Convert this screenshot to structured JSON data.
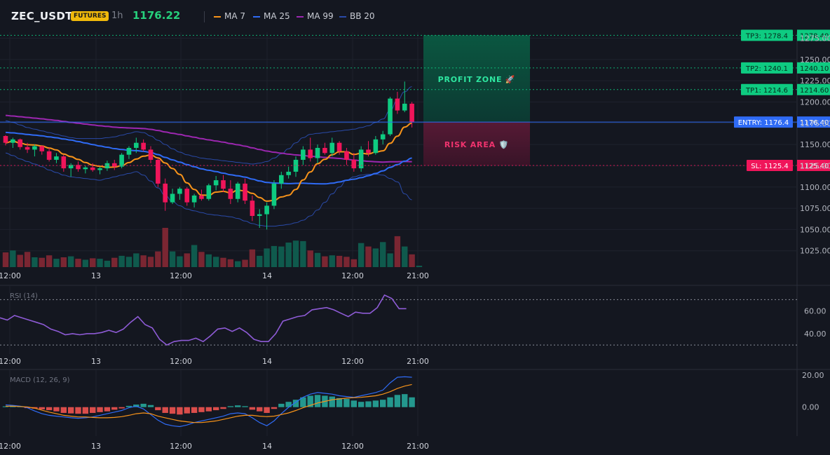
{
  "header": {
    "symbol": "ZEC_USDT",
    "badge": "FUTURES",
    "timeframe": "1h",
    "price": "1176.22",
    "legend": [
      {
        "label": "MA 7",
        "color": "#f7931a"
      },
      {
        "label": "MA 25",
        "color": "#2f6bf5"
      },
      {
        "label": "MA 99",
        "color": "#9c27b0"
      },
      {
        "label": "BB 20",
        "color": "#2a4aa8"
      }
    ]
  },
  "chart_data": [
    {
      "type": "candlestick",
      "title": "ZEC_USDT",
      "y_ticks": [
        1025,
        1050,
        1075,
        1100,
        1125,
        1150,
        1175,
        1200,
        1225,
        1250,
        1275
      ],
      "y_tick_labels": [
        "1025.00",
        "1050.00",
        "1075.00",
        "1100.00",
        "1125.00",
        "1150.00",
        "1175.00",
        "1200.00",
        "1225.00",
        "1250.00",
        "1275.00"
      ],
      "ylim": [
        1005,
        1282
      ],
      "x_labels": [
        "12:00",
        "13",
        "12:00",
        "14",
        "12:00",
        "21:00"
      ],
      "candles": [
        [
          1160,
          1161,
          1149,
          1152
        ],
        [
          1152,
          1158,
          1146,
          1156
        ],
        [
          1156,
          1157,
          1144,
          1147
        ],
        [
          1147,
          1152,
          1140,
          1144
        ],
        [
          1144,
          1150,
          1136,
          1148
        ],
        [
          1148,
          1149,
          1138,
          1142
        ],
        [
          1142,
          1146,
          1130,
          1132
        ],
        [
          1132,
          1140,
          1128,
          1136
        ],
        [
          1136,
          1138,
          1118,
          1122
        ],
        [
          1122,
          1128,
          1112,
          1126
        ],
        [
          1126,
          1130,
          1118,
          1121
        ],
        [
          1121,
          1125,
          1116,
          1123
        ],
        [
          1123,
          1128,
          1118,
          1120
        ],
        [
          1120,
          1124,
          1115,
          1122
        ],
        [
          1122,
          1131,
          1119,
          1128
        ],
        [
          1128,
          1132,
          1120,
          1124
        ],
        [
          1124,
          1140,
          1122,
          1138
        ],
        [
          1138,
          1148,
          1133,
          1146
        ],
        [
          1146,
          1158,
          1140,
          1152
        ],
        [
          1152,
          1156,
          1142,
          1144
        ],
        [
          1144,
          1148,
          1128,
          1132
        ],
        [
          1132,
          1134,
          1100,
          1104
        ],
        [
          1104,
          1110,
          1072,
          1082
        ],
        [
          1082,
          1098,
          1080,
          1092
        ],
        [
          1092,
          1100,
          1085,
          1098
        ],
        [
          1098,
          1100,
          1078,
          1082
        ],
        [
          1082,
          1092,
          1076,
          1090
        ],
        [
          1090,
          1097,
          1084,
          1086
        ],
        [
          1086,
          1104,
          1084,
          1102
        ],
        [
          1102,
          1113,
          1096,
          1108
        ],
        [
          1108,
          1114,
          1094,
          1098
        ],
        [
          1098,
          1108,
          1080,
          1086
        ],
        [
          1086,
          1106,
          1082,
          1104
        ],
        [
          1104,
          1110,
          1080,
          1084
        ],
        [
          1084,
          1090,
          1060,
          1066
        ],
        [
          1066,
          1074,
          1052,
          1068
        ],
        [
          1068,
          1082,
          1050,
          1078
        ],
        [
          1078,
          1108,
          1074,
          1104
        ],
        [
          1104,
          1118,
          1098,
          1114
        ],
        [
          1114,
          1124,
          1110,
          1118
        ],
        [
          1118,
          1136,
          1112,
          1132
        ],
        [
          1132,
          1148,
          1126,
          1144
        ],
        [
          1144,
          1158,
          1130,
          1134
        ],
        [
          1134,
          1150,
          1128,
          1146
        ],
        [
          1146,
          1152,
          1138,
          1140
        ],
        [
          1140,
          1158,
          1136,
          1152
        ],
        [
          1152,
          1154,
          1138,
          1142
        ],
        [
          1142,
          1146,
          1126,
          1132
        ],
        [
          1132,
          1140,
          1118,
          1122
        ],
        [
          1122,
          1148,
          1118,
          1144
        ],
        [
          1144,
          1154,
          1136,
          1140
        ],
        [
          1140,
          1160,
          1138,
          1156
        ],
        [
          1156,
          1166,
          1150,
          1162
        ],
        [
          1162,
          1206,
          1160,
          1204
        ],
        [
          1204,
          1212,
          1186,
          1190
        ],
        [
          1190,
          1224,
          1188,
          1198
        ],
        [
          1198,
          1200,
          1170,
          1176
        ]
      ],
      "volumes": [
        0.3,
        0.34,
        0.25,
        0.31,
        0.2,
        0.19,
        0.24,
        0.17,
        0.2,
        0.22,
        0.17,
        0.15,
        0.18,
        0.17,
        0.13,
        0.19,
        0.23,
        0.21,
        0.28,
        0.24,
        0.21,
        0.32,
        0.8,
        0.32,
        0.22,
        0.28,
        0.45,
        0.31,
        0.26,
        0.21,
        0.19,
        0.16,
        0.12,
        0.15,
        0.36,
        0.23,
        0.38,
        0.43,
        0.42,
        0.5,
        0.54,
        0.53,
        0.34,
        0.29,
        0.22,
        0.24,
        0.23,
        0.21,
        0.16,
        0.49,
        0.42,
        0.38,
        0.51,
        0.28,
        0.63,
        0.42,
        0.26
      ],
      "bb_upper": [
        1178,
        1176,
        1173,
        1170,
        1168,
        1166,
        1164,
        1162,
        1160,
        1158,
        1157,
        1157,
        1157,
        1157,
        1158,
        1159,
        1161,
        1163,
        1165,
        1164,
        1160,
        1155,
        1150,
        1145,
        1141,
        1138,
        1136,
        1134,
        1133,
        1132,
        1131,
        1130,
        1129,
        1128,
        1127,
        1128,
        1130,
        1134,
        1139,
        1145,
        1152,
        1158,
        1162,
        1163,
        1164,
        1165,
        1166,
        1167,
        1168,
        1170,
        1172,
        1176,
        1180,
        1190,
        1202,
        1212,
        1218
      ],
      "bb_lower": [
        1140,
        1137,
        1133,
        1130,
        1127,
        1124,
        1120,
        1117,
        1114,
        1112,
        1111,
        1110,
        1109,
        1108,
        1110,
        1112,
        1114,
        1116,
        1118,
        1114,
        1107,
        1099,
        1090,
        1083,
        1078,
        1074,
        1072,
        1070,
        1068,
        1067,
        1066,
        1065,
        1063,
        1060,
        1057,
        1055,
        1054,
        1054,
        1055,
        1056,
        1058,
        1061,
        1066,
        1073,
        1082,
        1092,
        1100,
        1108,
        1112,
        1114,
        1115,
        1115,
        1114,
        1110,
        1106,
        1092,
        1085
      ]
    },
    {
      "type": "line",
      "title": "RSI (14)",
      "y_ticks": [
        40,
        60
      ],
      "y_tick_labels": [
        "40.00",
        "60.00"
      ],
      "ylim": [
        22,
        82
      ],
      "x_labels": [
        "12:00",
        "13",
        "12:00",
        "14",
        "12:00",
        "21:00"
      ],
      "levels": [
        70,
        30
      ],
      "values": [
        54,
        52,
        56,
        54,
        52,
        50,
        48,
        44,
        42,
        39,
        40,
        39,
        40,
        40,
        41,
        43,
        41,
        44,
        50,
        55,
        48,
        45,
        35,
        30,
        33,
        34,
        34,
        36,
        33,
        38,
        44,
        45,
        42,
        45,
        41,
        35,
        33,
        33,
        40,
        51,
        53,
        55,
        56,
        61,
        62,
        63,
        61,
        58,
        55,
        59,
        58,
        58,
        63,
        74,
        71,
        62,
        62
      ]
    },
    {
      "type": "bar_line",
      "title": "MACD (12, 26, 9)",
      "y_ticks": [
        0,
        20
      ],
      "y_tick_labels": [
        "0.00",
        "20.00"
      ],
      "ylim": [
        -18,
        23
      ],
      "x_labels": [
        "12:00",
        "13",
        "12:00",
        "14",
        "12:00",
        "21:00"
      ],
      "histogram": [
        0.5,
        1.1,
        0.6,
        -0.6,
        -0.9,
        -1.4,
        -1.9,
        -2.6,
        -3.6,
        -3.9,
        -4.1,
        -4.1,
        -3.6,
        -3.1,
        -2.6,
        -1.6,
        -0.8,
        0.8,
        1.6,
        2.1,
        1.3,
        -1.9,
        -3.6,
        -4.1,
        -4.6,
        -3.9,
        -3.6,
        -3.1,
        -2.6,
        -1.9,
        -1.1,
        0.6,
        1.1,
        0.6,
        -1.6,
        -2.6,
        -3.6,
        -1.1,
        2.1,
        3.3,
        4.6,
        6.1,
        7.1,
        7.6,
        7.1,
        6.6,
        5.6,
        5.1,
        4.1,
        3.3,
        3.6,
        4.1,
        4.6,
        6.1,
        7.6,
        8.1,
        6.1
      ],
      "macd": [
        1.4,
        1.1,
        0.6,
        -0.4,
        -2.4,
        -4.1,
        -5.1,
        -5.6,
        -6.1,
        -6.6,
        -6.9,
        -6.6,
        -6.1,
        -5.1,
        -4.1,
        -3.1,
        -2.1,
        -0.4,
        0.6,
        -1.1,
        -4.6,
        -8.1,
        -10.6,
        -11.6,
        -12.1,
        -11.1,
        -9.6,
        -8.6,
        -7.6,
        -6.6,
        -5.6,
        -4.1,
        -3.6,
        -4.1,
        -6.6,
        -9.6,
        -11.6,
        -8.6,
        -4.1,
        -0.1,
        3.1,
        6.1,
        8.1,
        9.1,
        8.6,
        8.1,
        7.1,
        6.6,
        6.1,
        7.1,
        8.1,
        9.1,
        10.6,
        15.1,
        18.6,
        18.9,
        18.6
      ],
      "signal": [
        0.6,
        0.6,
        0.4,
        0.1,
        -0.6,
        -1.9,
        -3.1,
        -4.1,
        -5.1,
        -5.6,
        -6.1,
        -6.1,
        -6.4,
        -6.6,
        -6.6,
        -6.4,
        -5.9,
        -5.1,
        -4.1,
        -3.6,
        -4.1,
        -5.6,
        -6.6,
        -7.6,
        -8.6,
        -9.1,
        -9.6,
        -9.6,
        -9.1,
        -8.6,
        -7.6,
        -6.6,
        -5.6,
        -5.1,
        -5.1,
        -5.6,
        -5.9,
        -5.6,
        -4.6,
        -3.6,
        -2.1,
        -0.4,
        1.1,
        2.6,
        3.6,
        4.6,
        5.1,
        5.6,
        5.9,
        6.1,
        6.6,
        7.1,
        8.1,
        9.6,
        11.6,
        13.1,
        14.1
      ]
    }
  ],
  "trade_levels": [
    {
      "name": "TP3",
      "label": "TP3: 1278.4",
      "axis": "1278.40",
      "value": 1278.4,
      "color": "#0ecb81"
    },
    {
      "name": "TP2",
      "label": "TP2: 1240.1",
      "axis": "1240.10",
      "value": 1240.1,
      "color": "#0ecb81"
    },
    {
      "name": "TP1",
      "label": "TP1: 1214.6",
      "axis": "1214.60",
      "value": 1214.6,
      "color": "#0ecb81"
    },
    {
      "name": "ENTRY",
      "label": "ENTRY: 1176.4",
      "axis": "1176.40",
      "value": 1176.4,
      "color": "#2f6bf5"
    },
    {
      "name": "SL",
      "label": "SL: 1125.4",
      "axis": "1125.40",
      "value": 1125.4,
      "color": "#f0155a"
    }
  ],
  "zones": {
    "profit_label": "PROFIT ZONE 🚀",
    "risk_label": "RISK AREA 🛡️"
  },
  "colors": {
    "up": "#0ecb81",
    "down": "#f0155a",
    "up_volume": "#0f5a4d",
    "down_volume": "#7a2632",
    "rsi": "#8e5bd6",
    "macd_line": "#2f6bf5",
    "signal_line": "#f7931a",
    "hist_up": "#26a69a",
    "hist_down": "#ef5350"
  }
}
